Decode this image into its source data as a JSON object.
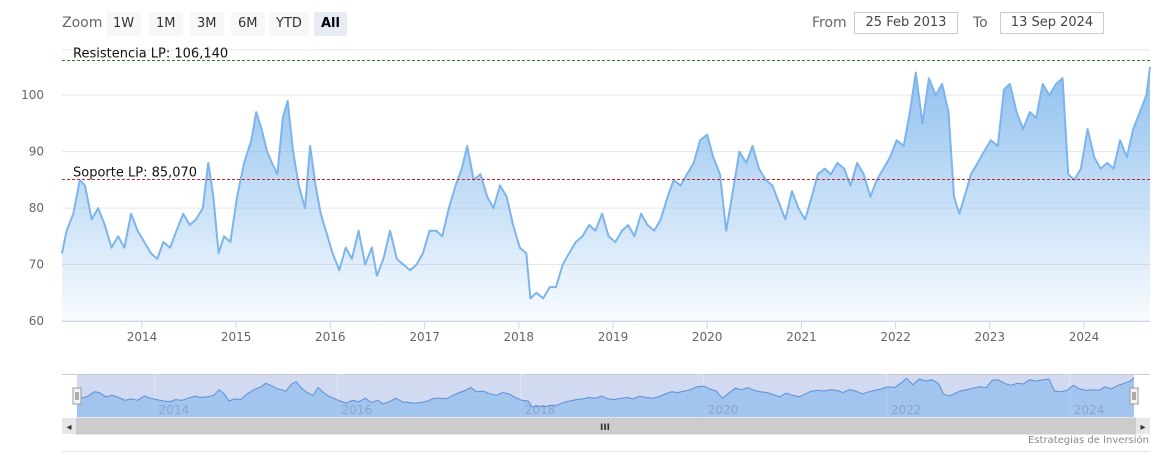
{
  "toolbar": {
    "zoom_label": "Zoom",
    "zoom_buttons": [
      "1W",
      "1M",
      "3M",
      "6M",
      "YTD",
      "All"
    ],
    "active_button": "All",
    "from_label": "From",
    "from_value": "25 Feb 2013",
    "to_label": "To",
    "to_value": "13 Sep 2024"
  },
  "credit": "Estrategias de Inversión",
  "scrollbar": {
    "middle_glyph": "III",
    "left_arrow": "◂",
    "right_arrow": "▸"
  },
  "chart_data": {
    "type": "area",
    "title": "",
    "xlabel": "",
    "ylabel": "",
    "x_range": [
      "2013-02-25",
      "2024-09-13"
    ],
    "ylim": [
      60,
      108
    ],
    "y_ticks": [
      60,
      70,
      80,
      90,
      100
    ],
    "x_ticks": [
      "2014",
      "2015",
      "2016",
      "2017",
      "2018",
      "2019",
      "2020",
      "2021",
      "2022",
      "2023",
      "2024"
    ],
    "navigator_ticks": [
      "2014",
      "2016",
      "2018",
      "2020",
      "2022",
      "2024"
    ],
    "grid": true,
    "colors": {
      "line": "#7cb5ec",
      "fill_top": "#7cb5ec",
      "resistance": "#2e7d32",
      "support": "#c62828"
    },
    "plot_lines": [
      {
        "label": "Resistencia LP: 106,140",
        "value": 106.14,
        "style": "dashed",
        "color": "#2e7d32"
      },
      {
        "label": "Soporte LP: 85,070",
        "value": 85.07,
        "style": "dashed",
        "color": "#c62828"
      }
    ],
    "series": [
      {
        "values": [
          [
            "2013-02-25",
            72
          ],
          [
            "2013-03-15",
            76
          ],
          [
            "2013-04-10",
            79
          ],
          [
            "2013-05-05",
            85
          ],
          [
            "2013-05-25",
            84
          ],
          [
            "2013-06-20",
            78
          ],
          [
            "2013-07-15",
            80
          ],
          [
            "2013-08-10",
            77
          ],
          [
            "2013-09-05",
            73
          ],
          [
            "2013-10-01",
            75
          ],
          [
            "2013-10-25",
            73
          ],
          [
            "2013-11-20",
            79
          ],
          [
            "2013-12-15",
            76
          ],
          [
            "2014-01-10",
            74
          ],
          [
            "2014-02-05",
            72
          ],
          [
            "2014-03-01",
            71
          ],
          [
            "2014-03-25",
            74
          ],
          [
            "2014-04-20",
            73
          ],
          [
            "2014-05-15",
            76
          ],
          [
            "2014-06-10",
            79
          ],
          [
            "2014-07-05",
            77
          ],
          [
            "2014-07-30",
            78
          ],
          [
            "2014-08-25",
            80
          ],
          [
            "2014-09-15",
            88
          ],
          [
            "2014-10-05",
            82
          ],
          [
            "2014-10-25",
            72
          ],
          [
            "2014-11-15",
            75
          ],
          [
            "2014-12-10",
            74
          ],
          [
            "2015-01-05",
            82
          ],
          [
            "2015-02-01",
            88
          ],
          [
            "2015-03-01",
            92
          ],
          [
            "2015-03-20",
            97
          ],
          [
            "2015-04-10",
            94
          ],
          [
            "2015-05-01",
            90
          ],
          [
            "2015-05-20",
            88
          ],
          [
            "2015-06-10",
            86
          ],
          [
            "2015-07-01",
            96
          ],
          [
            "2015-07-20",
            99
          ],
          [
            "2015-08-10",
            90
          ],
          [
            "2015-09-01",
            84
          ],
          [
            "2015-09-25",
            80
          ],
          [
            "2015-10-15",
            91
          ],
          [
            "2015-11-05",
            84
          ],
          [
            "2015-11-25",
            79
          ],
          [
            "2015-12-15",
            76
          ],
          [
            "2016-01-10",
            72
          ],
          [
            "2016-02-05",
            69
          ],
          [
            "2016-03-01",
            73
          ],
          [
            "2016-03-25",
            71
          ],
          [
            "2016-04-20",
            76
          ],
          [
            "2016-05-15",
            70
          ],
          [
            "2016-06-10",
            73
          ],
          [
            "2016-06-30",
            68
          ],
          [
            "2016-07-25",
            71
          ],
          [
            "2016-08-20",
            76
          ],
          [
            "2016-09-15",
            71
          ],
          [
            "2016-10-10",
            70
          ],
          [
            "2016-11-05",
            69
          ],
          [
            "2016-12-01",
            70
          ],
          [
            "2016-12-25",
            72
          ],
          [
            "2017-01-20",
            76
          ],
          [
            "2017-02-15",
            76
          ],
          [
            "2017-03-10",
            75
          ],
          [
            "2017-04-05",
            80
          ],
          [
            "2017-05-01",
            84
          ],
          [
            "2017-05-25",
            87
          ],
          [
            "2017-06-15",
            91
          ],
          [
            "2017-07-10",
            85
          ],
          [
            "2017-08-05",
            86
          ],
          [
            "2017-09-01",
            82
          ],
          [
            "2017-09-25",
            80
          ],
          [
            "2017-10-20",
            84
          ],
          [
            "2017-11-15",
            82
          ],
          [
            "2017-12-10",
            77
          ],
          [
            "2018-01-05",
            73
          ],
          [
            "2018-01-30",
            72
          ],
          [
            "2018-02-15",
            64
          ],
          [
            "2018-03-10",
            65
          ],
          [
            "2018-04-05",
            64
          ],
          [
            "2018-05-01",
            66
          ],
          [
            "2018-05-25",
            66
          ],
          [
            "2018-06-20",
            70
          ],
          [
            "2018-07-15",
            72
          ],
          [
            "2018-08-10",
            74
          ],
          [
            "2018-09-05",
            75
          ],
          [
            "2018-10-01",
            77
          ],
          [
            "2018-10-25",
            76
          ],
          [
            "2018-11-20",
            79
          ],
          [
            "2018-12-15",
            75
          ],
          [
            "2019-01-10",
            74
          ],
          [
            "2019-02-05",
            76
          ],
          [
            "2019-03-01",
            77
          ],
          [
            "2019-03-25",
            75
          ],
          [
            "2019-04-20",
            79
          ],
          [
            "2019-05-15",
            77
          ],
          [
            "2019-06-10",
            76
          ],
          [
            "2019-07-05",
            78
          ],
          [
            "2019-08-01",
            82
          ],
          [
            "2019-08-25",
            85
          ],
          [
            "2019-09-20",
            84
          ],
          [
            "2019-10-15",
            86
          ],
          [
            "2019-11-10",
            88
          ],
          [
            "2019-12-05",
            92
          ],
          [
            "2020-01-01",
            93
          ],
          [
            "2020-01-25",
            89
          ],
          [
            "2020-02-20",
            86
          ],
          [
            "2020-03-15",
            76
          ],
          [
            "2020-04-10",
            83
          ],
          [
            "2020-05-05",
            90
          ],
          [
            "2020-06-01",
            88
          ],
          [
            "2020-06-25",
            91
          ],
          [
            "2020-07-20",
            87
          ],
          [
            "2020-08-15",
            85
          ],
          [
            "2020-09-10",
            84
          ],
          [
            "2020-10-05",
            81
          ],
          [
            "2020-10-30",
            78
          ],
          [
            "2020-11-25",
            83
          ],
          [
            "2020-12-20",
            80
          ],
          [
            "2021-01-15",
            78
          ],
          [
            "2021-02-10",
            82
          ],
          [
            "2021-03-05",
            86
          ],
          [
            "2021-04-01",
            87
          ],
          [
            "2021-04-25",
            86
          ],
          [
            "2021-05-20",
            88
          ],
          [
            "2021-06-15",
            87
          ],
          [
            "2021-07-10",
            84
          ],
          [
            "2021-08-05",
            88
          ],
          [
            "2021-08-30",
            86
          ],
          [
            "2021-09-25",
            82
          ],
          [
            "2021-10-20",
            85
          ],
          [
            "2021-11-15",
            87
          ],
          [
            "2021-12-10",
            89
          ],
          [
            "2022-01-05",
            92
          ],
          [
            "2022-02-01",
            91
          ],
          [
            "2022-02-25",
            97
          ],
          [
            "2022-03-20",
            104
          ],
          [
            "2022-04-15",
            95
          ],
          [
            "2022-05-10",
            103
          ],
          [
            "2022-06-05",
            100
          ],
          [
            "2022-06-30",
            102
          ],
          [
            "2022-07-25",
            97
          ],
          [
            "2022-08-15",
            82
          ],
          [
            "2022-09-05",
            79
          ],
          [
            "2022-09-25",
            82
          ],
          [
            "2022-10-20",
            86
          ],
          [
            "2022-11-15",
            88
          ],
          [
            "2022-12-10",
            90
          ],
          [
            "2023-01-05",
            92
          ],
          [
            "2023-02-01",
            91
          ],
          [
            "2023-02-25",
            101
          ],
          [
            "2023-03-20",
            102
          ],
          [
            "2023-04-15",
            97
          ],
          [
            "2023-05-10",
            94
          ],
          [
            "2023-06-05",
            97
          ],
          [
            "2023-06-30",
            96
          ],
          [
            "2023-07-25",
            102
          ],
          [
            "2023-08-20",
            100
          ],
          [
            "2023-09-15",
            102
          ],
          [
            "2023-10-10",
            103
          ],
          [
            "2023-11-01",
            86
          ],
          [
            "2023-11-25",
            85
          ],
          [
            "2023-12-20",
            87
          ],
          [
            "2024-01-15",
            94
          ],
          [
            "2024-02-10",
            89
          ],
          [
            "2024-03-05",
            87
          ],
          [
            "2024-04-01",
            88
          ],
          [
            "2024-04-25",
            87
          ],
          [
            "2024-05-20",
            92
          ],
          [
            "2024-06-15",
            89
          ],
          [
            "2024-07-10",
            94
          ],
          [
            "2024-08-05",
            97
          ],
          [
            "2024-08-30",
            100
          ],
          [
            "2024-09-13",
            105
          ]
        ]
      }
    ]
  }
}
